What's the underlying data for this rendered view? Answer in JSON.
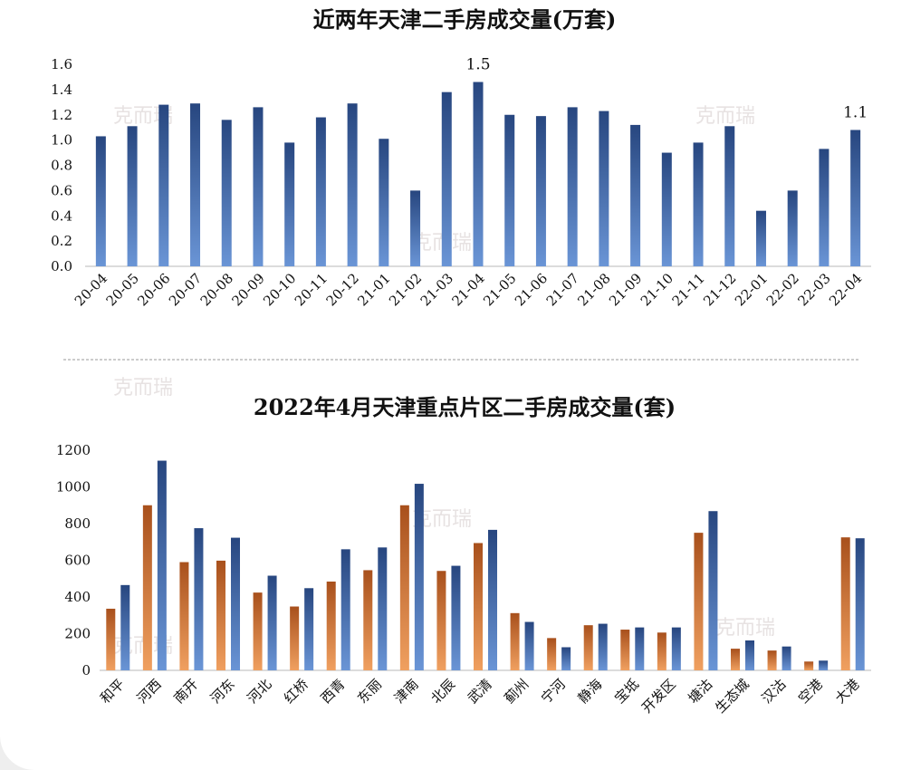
{
  "watermark": "克而瑞",
  "colors": {
    "blue_top": "#27467f",
    "blue_bottom": "#6a95d6",
    "orange_top": "#a8501c",
    "orange_bottom": "#f0a060",
    "axis": "#d0d0d0"
  },
  "chart_data": [
    {
      "type": "bar",
      "title": "近两年天津二手房成交量(万套)",
      "categories": [
        "20-04",
        "20-05",
        "20-06",
        "20-07",
        "20-08",
        "20-09",
        "20-10",
        "20-11",
        "20-12",
        "21-01",
        "21-02",
        "21-03",
        "21-04",
        "21-05",
        "21-06",
        "21-07",
        "21-08",
        "21-09",
        "21-10",
        "21-11",
        "21-12",
        "22-01",
        "22-02",
        "22-03",
        "22-04"
      ],
      "values": [
        1.03,
        1.11,
        1.28,
        1.29,
        1.16,
        1.26,
        0.98,
        1.18,
        1.29,
        1.01,
        0.6,
        1.38,
        1.46,
        1.2,
        1.19,
        1.26,
        1.23,
        1.12,
        0.9,
        0.98,
        1.11,
        0.44,
        0.6,
        0.93,
        1.08
      ],
      "data_labels": [
        {
          "category": "21-04",
          "text": "1.5"
        },
        {
          "category": "22-04",
          "text": "1.1"
        }
      ],
      "yticks": [
        "0.0",
        "0.2",
        "0.4",
        "0.6",
        "0.8",
        "1.0",
        "1.2",
        "1.4",
        "1.6"
      ],
      "ylim": [
        0,
        1.6
      ],
      "grid": false,
      "legend": "none"
    },
    {
      "type": "bar",
      "title": "2022年4月天津重点片区二手房成交量(套)",
      "categories": [
        "和平",
        "河西",
        "南开",
        "河东",
        "河北",
        "红桥",
        "西青",
        "东丽",
        "津南",
        "北辰",
        "武清",
        "蓟州",
        "宁河",
        "静海",
        "宝坻",
        "开发区",
        "塘沽",
        "生态城",
        "汉沽",
        "空港",
        "大港"
      ],
      "series": [
        {
          "color": "orange",
          "values": [
            336,
            900,
            590,
            598,
            424,
            348,
            484,
            546,
            900,
            542,
            694,
            312,
            176,
            246,
            222,
            206,
            750,
            118,
            108,
            48,
            725
          ]
        },
        {
          "color": "blue",
          "values": [
            465,
            1143,
            775,
            723,
            516,
            448,
            660,
            670,
            1017,
            570,
            766,
            264,
            126,
            254,
            234,
            234,
            868,
            163,
            130,
            53,
            720
          ]
        }
      ],
      "yticks": [
        "0",
        "200",
        "400",
        "600",
        "800",
        "1000",
        "1200"
      ],
      "ylim": [
        0,
        1200
      ],
      "grid": false,
      "legend": "none"
    }
  ]
}
